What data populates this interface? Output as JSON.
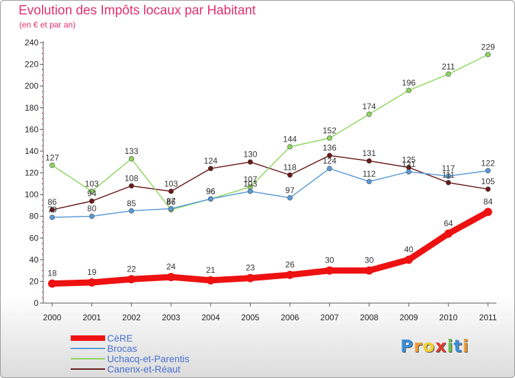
{
  "chart_data": {
    "type": "line",
    "title": "Evolution des Impôts locaux par Habitant",
    "subtitle": "(en € et par an)",
    "x": [
      "2000",
      "2001",
      "2002",
      "2003",
      "2004",
      "2005",
      "2006",
      "2007",
      "2008",
      "2009",
      "2010",
      "2011"
    ],
    "ylim": [
      0,
      240
    ],
    "yticks": [
      0,
      20,
      40,
      60,
      80,
      100,
      120,
      140,
      160,
      180,
      200,
      220,
      240
    ],
    "grid": false,
    "legend_position": "bottom-left",
    "series": [
      {
        "name": "CèRE",
        "color": "#ee1111",
        "values": [
          18,
          19,
          22,
          24,
          21,
          23,
          26,
          30,
          30,
          40,
          64,
          84
        ]
      },
      {
        "name": "Brocas",
        "color": "#5a9ad8",
        "values": [
          79,
          80,
          85,
          87,
          96,
          103,
          97,
          124,
          112,
          121,
          117,
          122
        ]
      },
      {
        "name": "Uchacq-et-Parentis",
        "color": "#8fd660",
        "values": [
          127,
          103,
          133,
          86,
          96,
          107,
          144,
          152,
          174,
          196,
          211,
          229
        ]
      },
      {
        "name": "Canenx-et-Réaut",
        "color": "#6b1a1a",
        "values": [
          86,
          94,
          108,
          103,
          124,
          130,
          118,
          136,
          131,
          125,
          111,
          105
        ]
      }
    ],
    "data_labels": {
      "CèRE": [
        "18",
        "19",
        "22",
        "24",
        "21",
        "23",
        "26",
        "30",
        "30",
        "40",
        "64",
        "84"
      ],
      "Brocas": [
        "79",
        "80",
        "85",
        "87",
        "96",
        "103",
        "97",
        "124",
        "112",
        "121",
        "117",
        "122"
      ],
      "Uchacq-et-Parentis": [
        "127",
        "103",
        "133",
        "86",
        "96",
        "107",
        "144",
        "152",
        "174",
        "196",
        "211",
        "229"
      ],
      "Canenx-et-Réaut": [
        "86",
        "94",
        "108",
        "103",
        "124",
        "130",
        "118",
        "136",
        "131",
        "125",
        "111",
        "105"
      ]
    }
  },
  "logo": {
    "letters": [
      "P",
      "r",
      "o",
      "x",
      "i",
      "t",
      "i"
    ],
    "colors": [
      "#3a8fd8",
      "#f29a2e",
      "#f2d02e",
      "#e23b2e",
      "#6cc04a",
      "#3a8fd8",
      "#f29a2e"
    ]
  }
}
